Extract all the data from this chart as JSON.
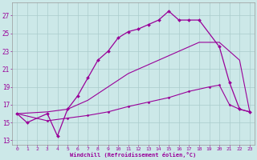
{
  "xlabel": "Windchill (Refroidissement éolien,°C)",
  "background_color": "#cce8e8",
  "grid_color": "#aacccc",
  "line_color": "#990099",
  "xlim": [
    -0.5,
    23.5
  ],
  "ylim": [
    12.5,
    28.5
  ],
  "yticks": [
    13,
    15,
    17,
    19,
    21,
    23,
    25,
    27
  ],
  "xticks": [
    0,
    1,
    2,
    3,
    4,
    5,
    6,
    7,
    8,
    9,
    10,
    11,
    12,
    13,
    14,
    15,
    16,
    17,
    18,
    19,
    20,
    21,
    22,
    23
  ],
  "line1_x": [
    0,
    1,
    3,
    4,
    5,
    6,
    7,
    8,
    9,
    10,
    11,
    12,
    13,
    14,
    15,
    16,
    17,
    18,
    20,
    21,
    22,
    23
  ],
  "line1_y": [
    16,
    15,
    16,
    13.5,
    16.5,
    18,
    20,
    22,
    23,
    24.5,
    25.2,
    25.5,
    26,
    26.5,
    27.5,
    26.5,
    26.5,
    26.5,
    23.5,
    19.5,
    16.5,
    16.2
  ],
  "line2_x": [
    0,
    3,
    5,
    7,
    9,
    11,
    13,
    15,
    17,
    18,
    20,
    22,
    23
  ],
  "line2_y": [
    16,
    16.2,
    16.5,
    17.5,
    19,
    20.5,
    21.5,
    22.5,
    23.5,
    24,
    24,
    22,
    16.2
  ],
  "line3_x": [
    0,
    3,
    5,
    7,
    9,
    11,
    13,
    15,
    17,
    19,
    20,
    21,
    22,
    23
  ],
  "line3_y": [
    16,
    15.2,
    15.5,
    15.8,
    16.2,
    16.8,
    17.3,
    17.8,
    18.5,
    19,
    19.2,
    17,
    16.5,
    16.2
  ]
}
